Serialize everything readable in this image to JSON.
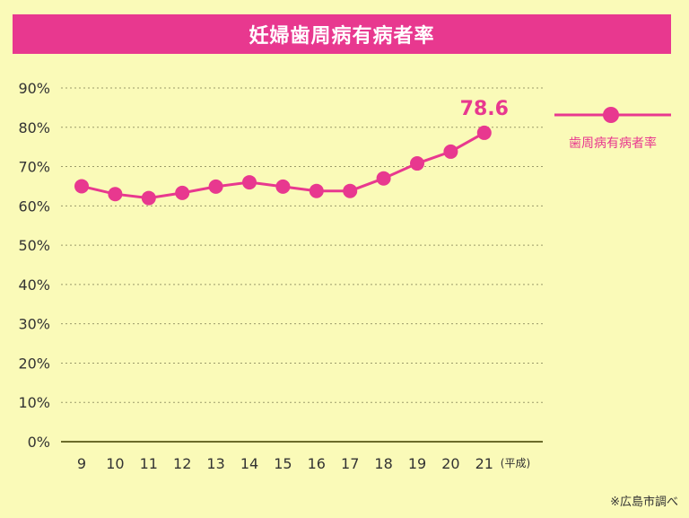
{
  "chart_data": {
    "type": "line",
    "title": "妊婦歯周病有病者率",
    "xlabel": "",
    "ylabel": "",
    "x_unit": "(平成)",
    "categories": [
      "9",
      "10",
      "11",
      "12",
      "13",
      "14",
      "15",
      "16",
      "17",
      "18",
      "19",
      "20",
      "21"
    ],
    "series": [
      {
        "name": "歯周病有病者率",
        "values": [
          65.0,
          63.0,
          62.0,
          63.3,
          64.9,
          66.0,
          64.9,
          63.8,
          63.8,
          67.0,
          70.8,
          73.8,
          78.6
        ]
      }
    ],
    "yticks": [
      "0%",
      "10%",
      "20%",
      "30%",
      "40%",
      "50%",
      "60%",
      "70%",
      "80%",
      "90%"
    ],
    "ylim": [
      0,
      90
    ],
    "grid": true,
    "legend_position": "right",
    "annotation": "78.6",
    "source_note": "※広島市調べ",
    "colors": {
      "accent": "#e8388f",
      "background": "#fafab8",
      "grid": "#9a9a6a"
    }
  }
}
